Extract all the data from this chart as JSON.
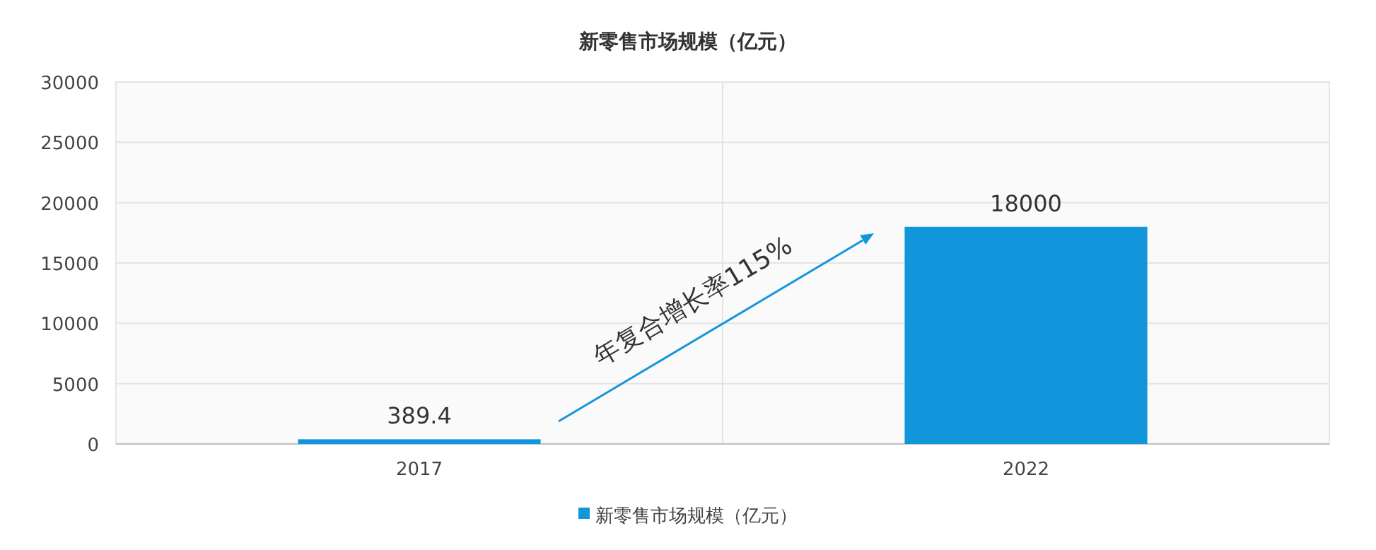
{
  "chart_data": {
    "type": "bar",
    "title": "新零售市场规模（亿元）",
    "categories": [
      "2017",
      "2022"
    ],
    "series": [
      {
        "name": "新零售市场规模（亿元）",
        "color": "#1296db",
        "values": [
          389.4,
          18000
        ]
      }
    ],
    "ylim": [
      0,
      30000
    ],
    "yticks": [
      0,
      5000,
      10000,
      15000,
      20000,
      25000,
      30000
    ],
    "grid": "y",
    "legend": "bottom",
    "data_labels": true,
    "annotations": [
      "年复合增长率115%"
    ]
  }
}
